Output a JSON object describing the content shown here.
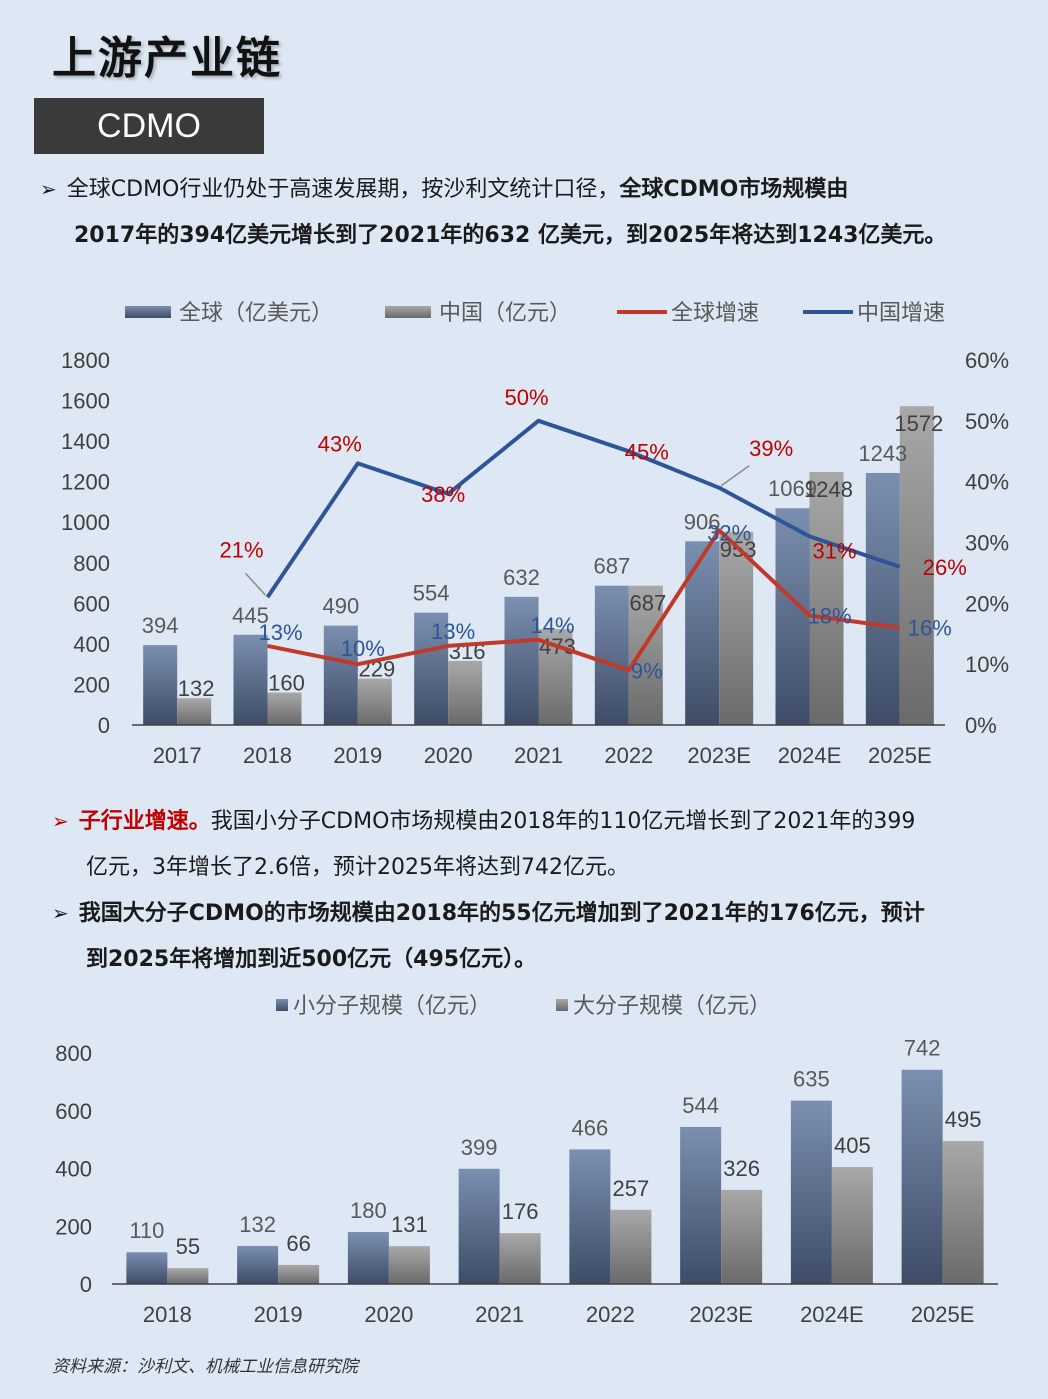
{
  "header": {
    "title": "上游产业链",
    "tag": "CDMO"
  },
  "paragraphs": {
    "p1": {
      "a": "全球CDMO行业仍处于高速发展期，按沙利文统计口径，",
      "b": "全球CDMO市场规模由",
      "c": "2017年的394亿美元增长到了2021年的632 亿美元，到2025年将达到1243亿美元。"
    },
    "p2": {
      "lead": "子行业增速。",
      "a": "我国小分子CDMO市场规模由2018年的110亿元增长到了2021年的399",
      "b": "亿元，3年增长了2.6倍，预计2025年将达到742亿元。"
    },
    "p3": {
      "a": "我国大分子CDMO的市场规模由2018年的55亿元增加到了2021年的176亿元，预计",
      "b": "到2025年将增加到近500亿元（495亿元）。"
    }
  },
  "source": "资料来源：沙利文、机械工业信息研究院",
  "chart_data": [
    {
      "type": "bar",
      "categories": [
        "2017",
        "2018",
        "2019",
        "2020",
        "2021",
        "2022",
        "2023E",
        "2024E",
        "2025E"
      ],
      "series": [
        {
          "name": "全球（亿美元）",
          "type": "bar",
          "axis": "left",
          "values": [
            394,
            445,
            490,
            554,
            632,
            687,
            906,
            1069,
            1243
          ]
        },
        {
          "name": "中国（亿元）",
          "type": "bar",
          "axis": "left",
          "values": [
            132,
            160,
            229,
            316,
            473,
            687,
            953,
            1248,
            1572
          ]
        },
        {
          "name": "全球增速",
          "type": "line",
          "axis": "right",
          "color": "#c0392b",
          "values": [
            null,
            13,
            10,
            13,
            14,
            9,
            32,
            18,
            16
          ],
          "labels": [
            "",
            "13%",
            "10%",
            "13%",
            "14%",
            "9%",
            "32%",
            "18%",
            "16%"
          ]
        },
        {
          "name": "中国增速",
          "type": "line",
          "axis": "right",
          "color": "#2e5597",
          "values": [
            null,
            21,
            43,
            38,
            50,
            45,
            39,
            31,
            26
          ],
          "labels": [
            "",
            "21%",
            "43%",
            "38%",
            "50%",
            "45%",
            "39%",
            "31%",
            "26%"
          ]
        }
      ],
      "ylim": [
        0,
        1800
      ],
      "yticks": [
        "0",
        "200",
        "400",
        "600",
        "800",
        "1000",
        "1200",
        "1400",
        "1600",
        "1800"
      ],
      "y2lim": [
        0,
        60
      ],
      "y2ticks": [
        "0%",
        "10%",
        "20%",
        "30%",
        "40%",
        "50%",
        "60%"
      ],
      "legend": "top",
      "grid": false,
      "colors": {
        "global_bar": "#5a6d8c",
        "china_bar": "#8a8a8a",
        "global_line": "#c0392b",
        "china_line": "#2e5597"
      }
    },
    {
      "type": "bar",
      "categories": [
        "2018",
        "2019",
        "2020",
        "2021",
        "2022",
        "2023E",
        "2024E",
        "2025E"
      ],
      "series": [
        {
          "name": "小分子规模（亿元）",
          "values": [
            110,
            132,
            180,
            399,
            466,
            544,
            635,
            742
          ]
        },
        {
          "name": "大分子规模（亿元）",
          "values": [
            55,
            66,
            131,
            176,
            257,
            326,
            405,
            495
          ]
        }
      ],
      "ylim": [
        0,
        800
      ],
      "yticks": [
        "0",
        "200",
        "400",
        "600",
        "800"
      ],
      "legend": "top",
      "grid": false
    }
  ]
}
